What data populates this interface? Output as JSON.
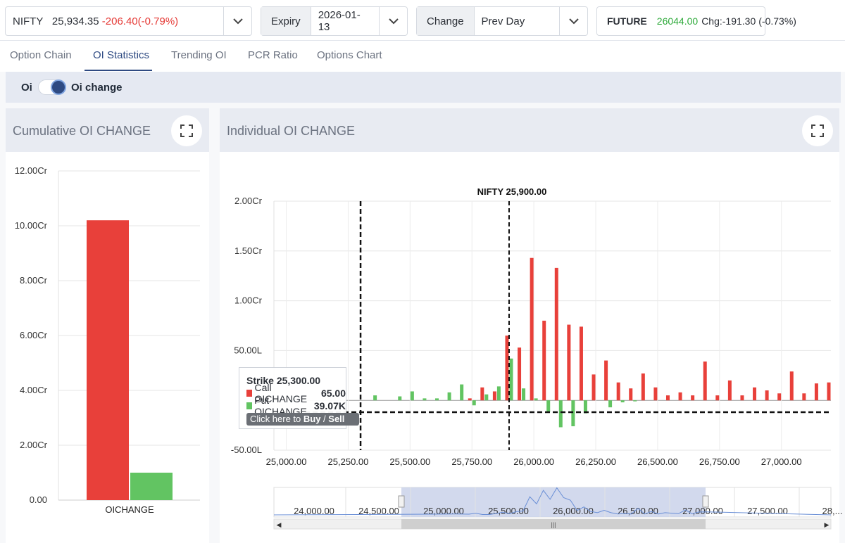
{
  "header": {
    "symbol": {
      "name": "NIFTY",
      "price": "25,934.35",
      "change": "-206.40(-0.79%)"
    },
    "expiry": {
      "label": "Expiry",
      "value": "2026-01-13"
    },
    "change_mode": {
      "label": "Change",
      "value": "Prev Day"
    },
    "future": {
      "label": "FUTURE",
      "price": "26044.00",
      "change": "Chg:-191.30",
      "pct": "(-0.73%)"
    }
  },
  "tabs": [
    "Option Chain",
    "OI Statistics",
    "Trending OI",
    "PCR Ratio",
    "Options Chart"
  ],
  "active_tab": "OI Statistics",
  "toggle": {
    "left_label": "Oi",
    "right_label": "Oi change",
    "state": "Oi change"
  },
  "left_panel": {
    "title": "Cumulative OI CHANGE"
  },
  "right_panel": {
    "title": "Individual OI CHANGE"
  },
  "tooltip": {
    "strike_label": "Strike",
    "strike": "25,300.00",
    "call_label": "Call OICHANGE",
    "call_value": "65.00",
    "put_label": "Put OICHANGE",
    "put_value": "39.07K",
    "button_prefix": "Click here to ",
    "button_buy": "Buy",
    "button_sep": " / ",
    "button_sell": "Sell"
  },
  "colors": {
    "call": "#e8403a",
    "put": "#62c462",
    "accent": "#2e4a82"
  },
  "chart_data": [
    {
      "type": "bar",
      "categories": [
        "OICHANGE"
      ],
      "series": [
        {
          "name": "Call",
          "values": [
            10.2
          ]
        },
        {
          "name": "Put",
          "values": [
            1.0
          ]
        }
      ],
      "ylabel": "",
      "yticks": [
        "0.00",
        "2.00Cr",
        "4.00Cr",
        "6.00Cr",
        "8.00Cr",
        "10.00Cr",
        "12.00Cr"
      ],
      "ylim": [
        0,
        12
      ],
      "unit": "Cr",
      "grid": true
    },
    {
      "type": "bar",
      "x": [
        25350,
        25450,
        25500,
        25550,
        25600,
        25650,
        25700,
        25750,
        25800,
        25850,
        25900,
        25950,
        26000,
        26050,
        26100,
        26150,
        26200,
        26250,
        26300,
        26350,
        26400,
        26450,
        26500,
        26550,
        26600,
        26650,
        26700,
        26750,
        26800,
        26850,
        26900,
        26950,
        27000,
        27050,
        27100,
        27150,
        27200
      ],
      "series": [
        {
          "name": "Call OICHANGE",
          "values": [
            0,
            0,
            0,
            0,
            0,
            0,
            0,
            2,
            13,
            9,
            65,
            53,
            143,
            80,
            133,
            76,
            74,
            26,
            40,
            18,
            12,
            27,
            13,
            5,
            8,
            5,
            39,
            5,
            20,
            5,
            13,
            10,
            7,
            29,
            7,
            17,
            18
          ]
        },
        {
          "name": "Put OICHANGE",
          "values": [
            5,
            4,
            9,
            2,
            2,
            8,
            16,
            -5,
            6,
            14,
            42,
            12,
            2,
            -12,
            -27,
            -26,
            -13,
            0,
            -7,
            -2,
            -1,
            0,
            0,
            0,
            0,
            0,
            0,
            0,
            0,
            0,
            0,
            0,
            0,
            0,
            0,
            0,
            0
          ]
        }
      ],
      "yticks": [
        "-50.00L",
        "0",
        "50.00L",
        "1.00Cr",
        "1.50Cr",
        "2.00Cr"
      ],
      "ylim": [
        -50,
        200
      ],
      "unit": "L",
      "xticks": [
        "25,000.00",
        "25,250.00",
        "25,500.00",
        "25,750.00",
        "26,000.00",
        "26,250.00",
        "26,500.00",
        "26,750.00",
        "27,000.00"
      ],
      "xlim": [
        24950,
        27200
      ],
      "annotations": {
        "spot_label": "NIFTY 25,900.00",
        "spot_x": 25900,
        "crosshair_x": 25300
      },
      "navigator_ticks": [
        "24,000.00",
        "24,500.00",
        "25,000.00",
        "25,500.00",
        "26,000.00",
        "26,500.00",
        "27,000.00",
        "27,500.00",
        "28,..."
      ]
    }
  ]
}
